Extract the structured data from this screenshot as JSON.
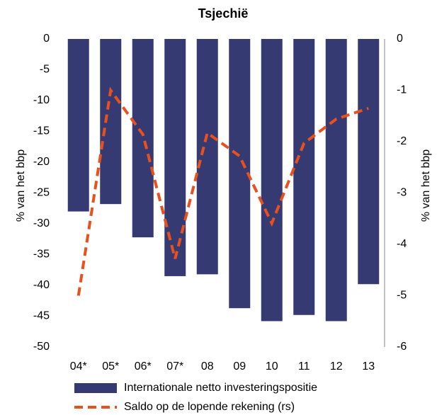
{
  "chart_data": {
    "type": "bar",
    "title": "Tsjechië",
    "categories": [
      "04*",
      "05*",
      "06*",
      "07*",
      "08",
      "09",
      "10",
      "11",
      "12",
      "13"
    ],
    "series": [
      {
        "name": "Internationale netto investeringspositie",
        "type": "bar",
        "color": "#353a72",
        "values": [
          -28,
          -26.8,
          -32.2,
          -38.5,
          -38.2,
          -43.7,
          -45.8,
          -44.8,
          -45.8,
          -39.8
        ]
      },
      {
        "name": "Saldo op de lopende rekening (rs)",
        "type": "line",
        "axis": "y2",
        "color": "#e8501e",
        "values": [
          -5.0,
          -1.0,
          -1.86,
          -4.28,
          -1.83,
          -2.28,
          -3.59,
          -2.03,
          -1.56,
          -1.35
        ]
      }
    ],
    "ylabel": "% van het bbp",
    "y2label": "% van het bbp",
    "ylim": [
      -50,
      0
    ],
    "yticks": [
      0,
      -5,
      -10,
      -15,
      -20,
      -25,
      -30,
      -35,
      -40,
      -45,
      -50
    ],
    "y2lim": [
      -6,
      0
    ],
    "y2ticks": [
      0,
      -1,
      -2,
      -3,
      -4,
      -5,
      -6
    ]
  }
}
